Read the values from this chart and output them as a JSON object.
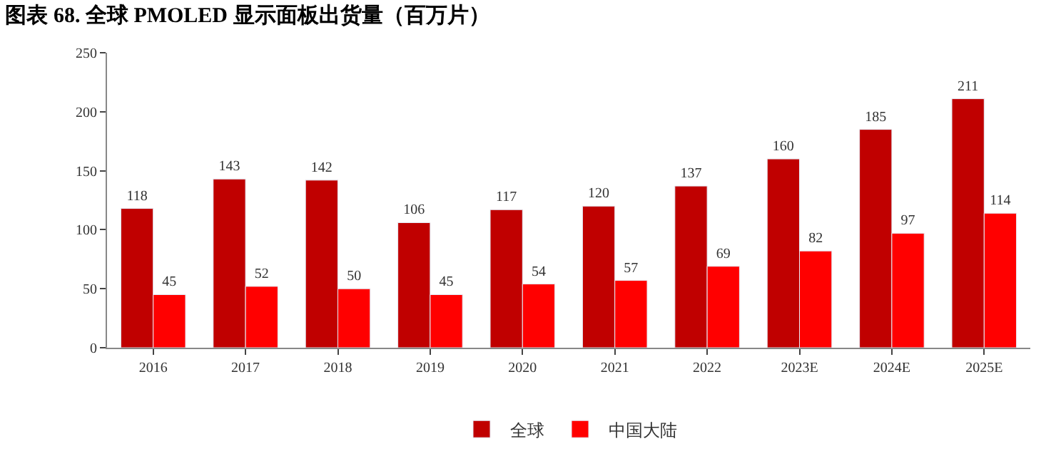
{
  "chart_data": {
    "type": "bar",
    "title": "图表 68. 全球 PMOLED 显示面板出货量（百万片）",
    "categories": [
      "2016",
      "2017",
      "2018",
      "2019",
      "2020",
      "2021",
      "2022",
      "2023E",
      "2024E",
      "2025E"
    ],
    "series": [
      {
        "name": "全球",
        "color": "#c00000",
        "values": [
          118,
          143,
          142,
          106,
          117,
          120,
          137,
          160,
          185,
          211
        ]
      },
      {
        "name": "中国大陆",
        "color": "#ff0000",
        "values": [
          45,
          52,
          50,
          45,
          54,
          57,
          69,
          82,
          97,
          114
        ]
      }
    ],
    "ylim": [
      0,
      250
    ],
    "yticks": [
      0,
      50,
      100,
      150,
      200,
      250
    ],
    "legend": "bottom",
    "data_labels": true
  }
}
